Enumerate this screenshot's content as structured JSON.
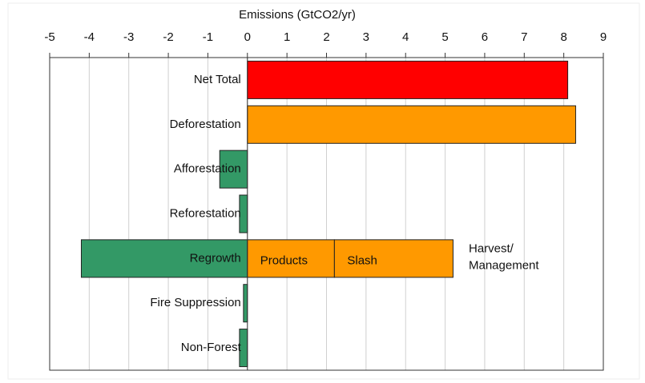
{
  "chart_data": {
    "type": "bar",
    "orientation": "horizontal",
    "xlabel": "Emissions (GtCO2/yr)",
    "categories": [
      "Net Total",
      "Deforestation",
      "Afforestation",
      "Reforestation",
      "Regrowth",
      "Fire Suppression",
      "Non-Forest"
    ],
    "series": [
      {
        "values": [
          8.1,
          8.3,
          -0.7,
          -0.2,
          -4.2,
          -0.1,
          -0.2
        ],
        "colors": [
          "#ff0000",
          "#ff9900",
          "#339966",
          "#339966",
          "#339966",
          "#339966",
          "#339966"
        ]
      },
      {
        "name": "Products",
        "color": "#ff9900",
        "values": [
          null,
          null,
          null,
          null,
          2.2,
          null,
          null
        ]
      },
      {
        "name": "Slash",
        "color": "#ff9900",
        "values": [
          null,
          null,
          null,
          null,
          3.0,
          null,
          null
        ]
      }
    ],
    "annotation": [
      "Harvest/",
      "Management"
    ],
    "xlim": [
      -5,
      9
    ],
    "xticks": [
      -5,
      -4,
      -3,
      -2,
      -1,
      0,
      1,
      2,
      3,
      4,
      5,
      6,
      7,
      8,
      9
    ],
    "grid": true
  }
}
